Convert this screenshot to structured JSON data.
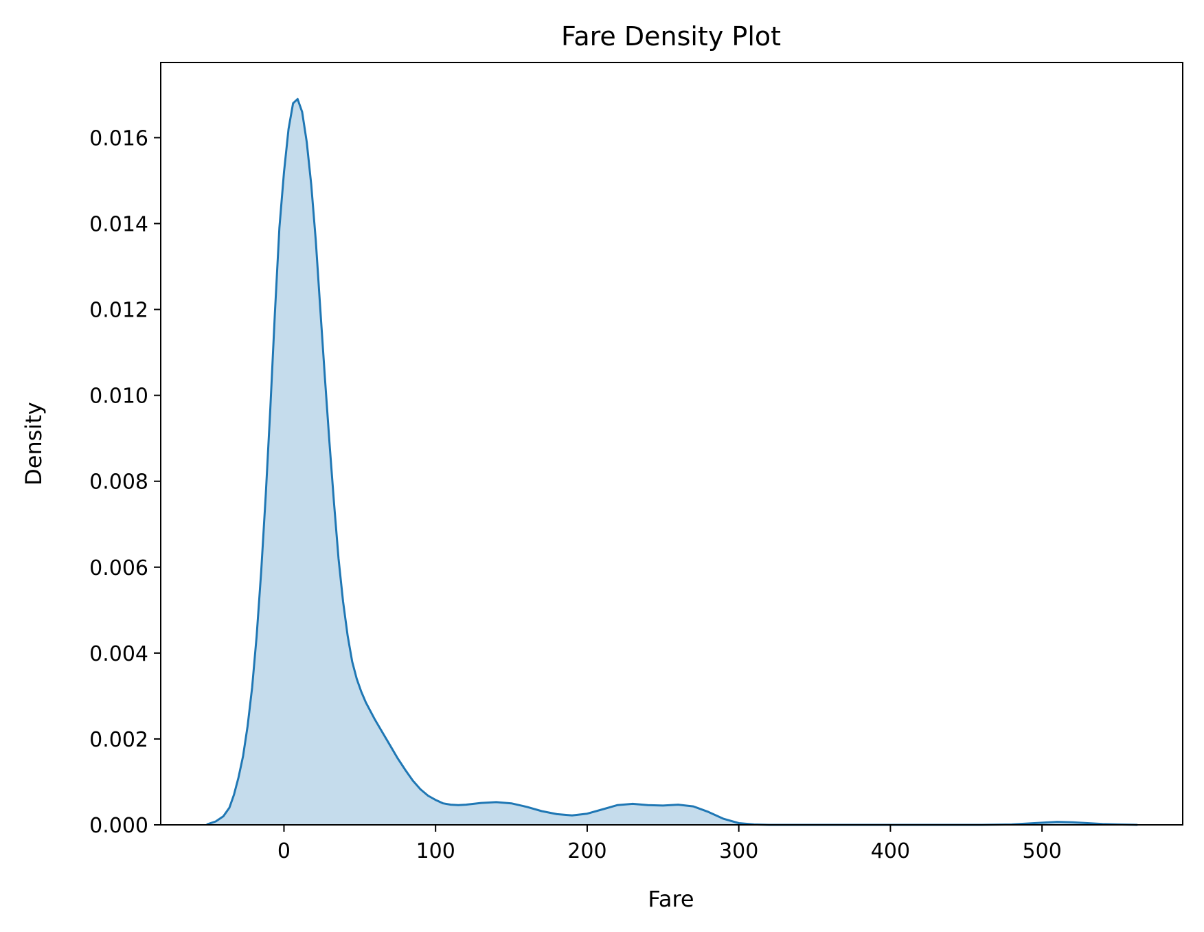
{
  "chart_data": {
    "type": "area",
    "title": "Fare Density Plot",
    "xlabel": "Fare",
    "ylabel": "Density",
    "xlim": [
      -81.3,
      592.8
    ],
    "ylim": [
      0,
      0.01775
    ],
    "x_ticks": [
      {
        "value": 0,
        "label": "0"
      },
      {
        "value": 100,
        "label": "100"
      },
      {
        "value": 200,
        "label": "200"
      },
      {
        "value": 300,
        "label": "300"
      },
      {
        "value": 400,
        "label": "400"
      },
      {
        "value": 500,
        "label": "500"
      }
    ],
    "y_ticks": [
      {
        "value": 0,
        "label": "0.000"
      },
      {
        "value": 0.002,
        "label": "0.002"
      },
      {
        "value": 0.004,
        "label": "0.004"
      },
      {
        "value": 0.006,
        "label": "0.006"
      },
      {
        "value": 0.008,
        "label": "0.008"
      },
      {
        "value": 0.01,
        "label": "0.010"
      },
      {
        "value": 0.012,
        "label": "0.012"
      },
      {
        "value": 0.014,
        "label": "0.014"
      },
      {
        "value": 0.016,
        "label": "0.016"
      }
    ],
    "grid": false,
    "series": [
      {
        "color": "#1f77b4",
        "fill_color": "#c5dcec",
        "x": [
          -51,
          -45,
          -40,
          -36,
          -33,
          -30,
          -27,
          -24,
          -21,
          -18,
          -15,
          -12,
          -9,
          -6,
          -3,
          0,
          3,
          6,
          9,
          12,
          15,
          18,
          21,
          24,
          27,
          30,
          33,
          36,
          39,
          42,
          45,
          48,
          51,
          54,
          57,
          60,
          65,
          70,
          75,
          80,
          85,
          90,
          95,
          100,
          105,
          110,
          115,
          120,
          130,
          140,
          150,
          160,
          170,
          180,
          190,
          200,
          210,
          220,
          230,
          240,
          250,
          260,
          270,
          280,
          290,
          300,
          310,
          320,
          340,
          360,
          380,
          400,
          420,
          440,
          460,
          480,
          500,
          510,
          520,
          530,
          540,
          550,
          563
        ],
        "y": [
          1e-05,
          8e-05,
          0.0002,
          0.0004,
          0.0007,
          0.0011,
          0.0016,
          0.0023,
          0.0032,
          0.0044,
          0.0059,
          0.0077,
          0.0097,
          0.0119,
          0.0139,
          0.0152,
          0.0162,
          0.0168,
          0.0169,
          0.0166,
          0.0159,
          0.0149,
          0.0136,
          0.012,
          0.0104,
          0.0089,
          0.0075,
          0.0062,
          0.0052,
          0.0044,
          0.0038,
          0.0034,
          0.0031,
          0.00285,
          0.00265,
          0.00245,
          0.00215,
          0.00185,
          0.00155,
          0.00128,
          0.00103,
          0.00083,
          0.00068,
          0.00058,
          0.0005,
          0.00047,
          0.00046,
          0.00047,
          0.00051,
          0.00053,
          0.0005,
          0.00042,
          0.00032,
          0.00025,
          0.00022,
          0.00026,
          0.00036,
          0.00046,
          0.00049,
          0.00046,
          0.00045,
          0.00047,
          0.00043,
          0.0003,
          0.00014,
          4e-05,
          1e-05,
          0.0,
          0.0,
          0.0,
          0.0,
          0.0,
          0.0,
          0.0,
          0.0,
          1e-05,
          5e-05,
          7e-05,
          6e-05,
          4e-05,
          2e-05,
          1e-05,
          0.0
        ]
      }
    ]
  }
}
